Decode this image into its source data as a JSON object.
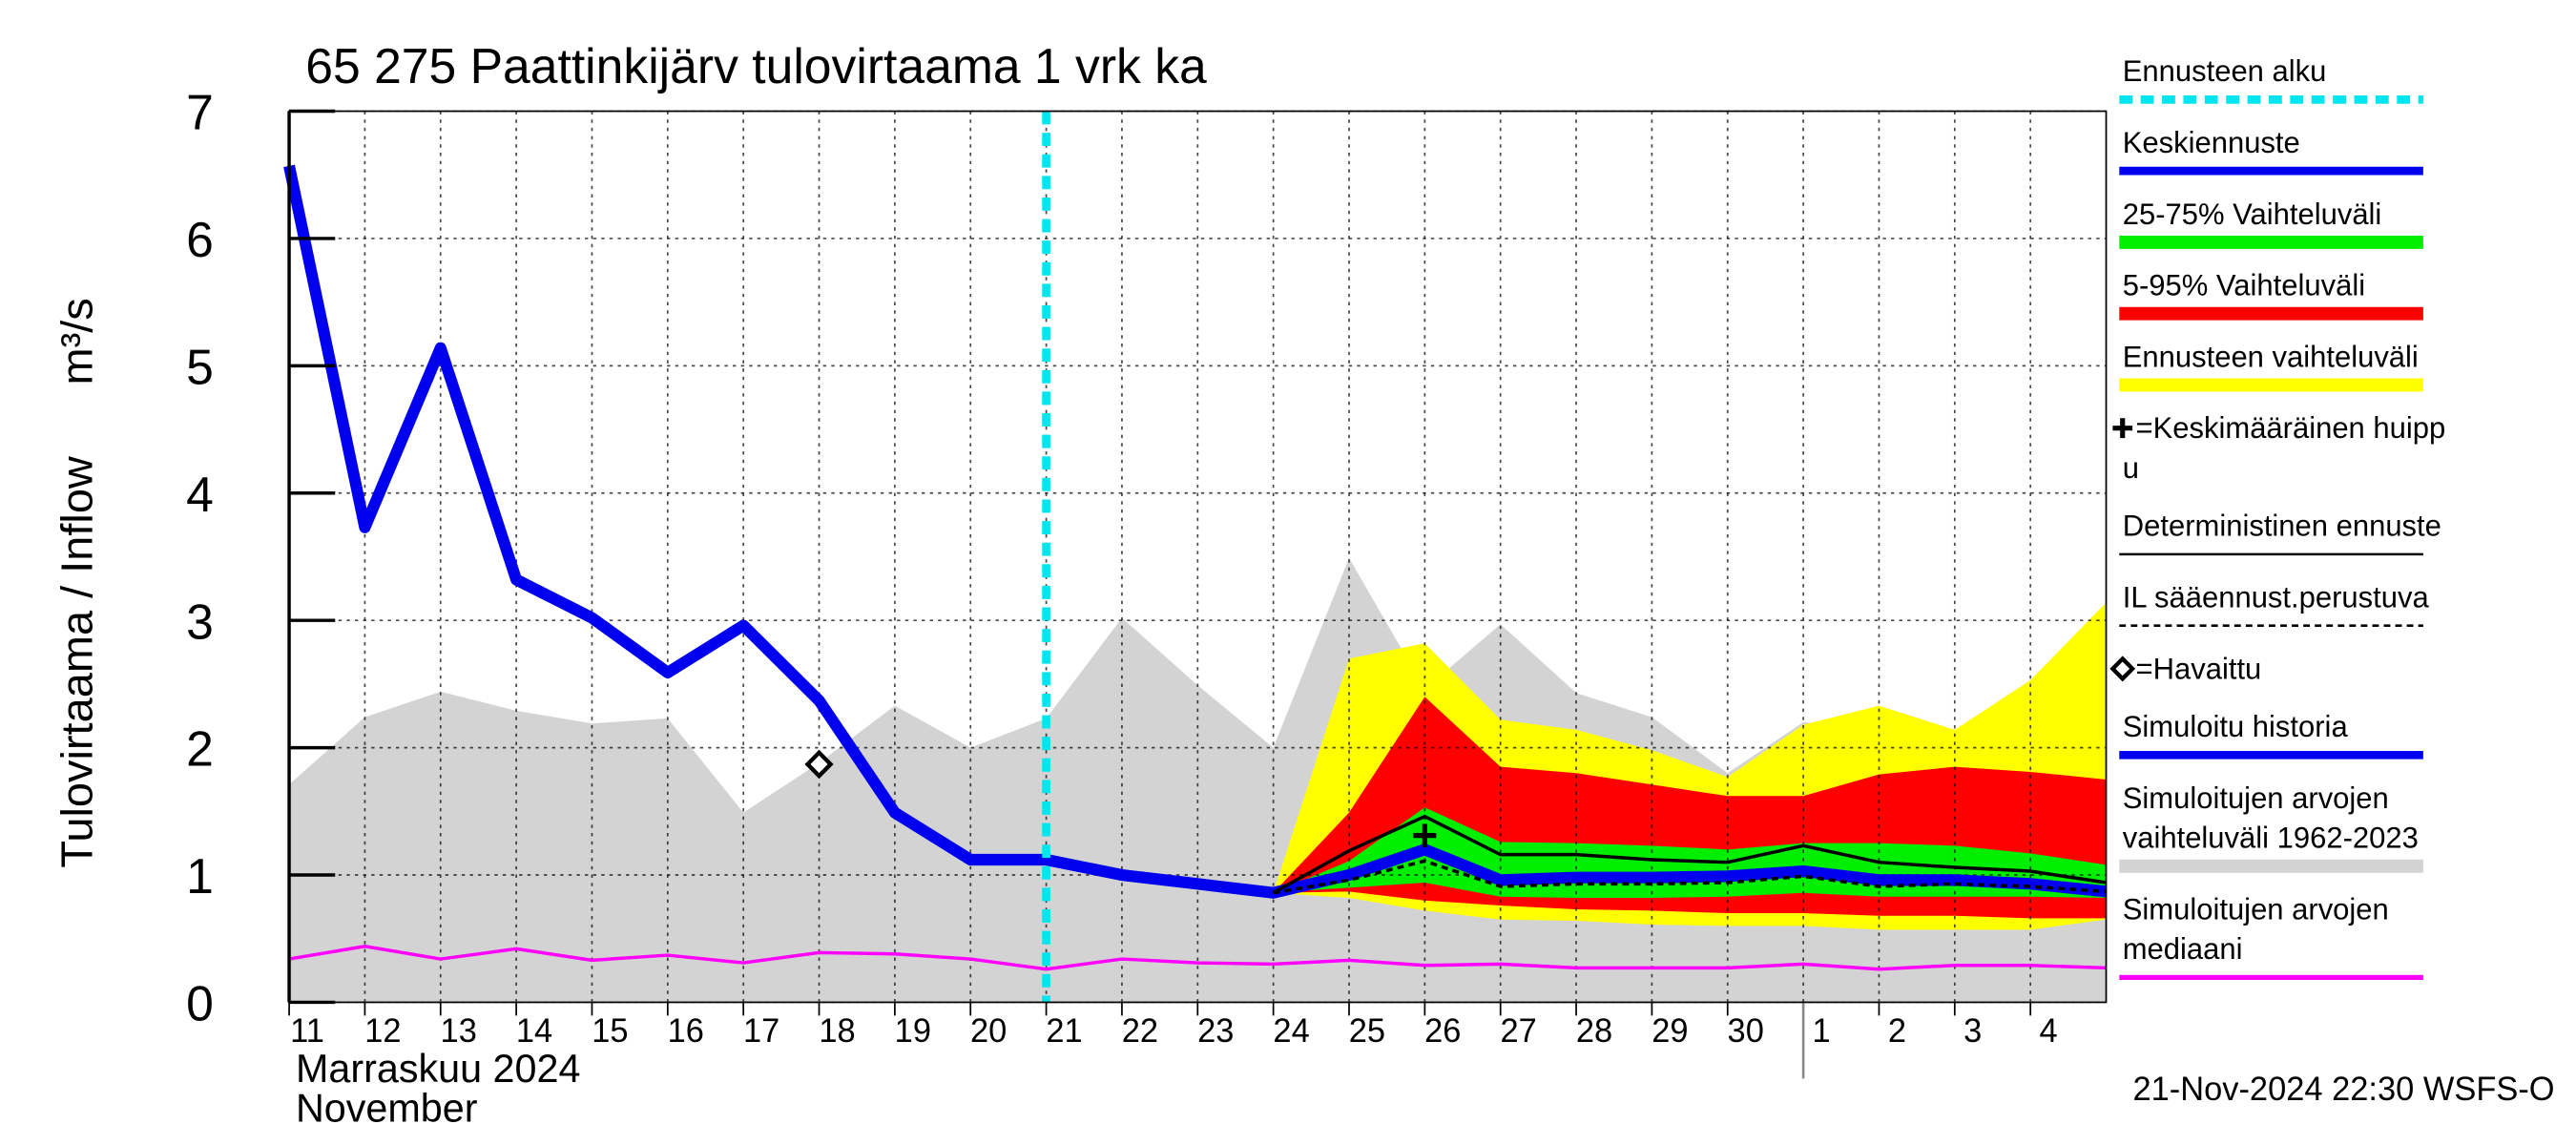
{
  "chart_data": {
    "type": "line",
    "title": "65 275 Paattinkijärv tulovirtaama 1 vrk ka",
    "y_label": "Tulovirtaama / Inflow",
    "y_unit": "m³/s",
    "x_label": [
      "Marraskuu 2024",
      "November"
    ],
    "footer": "21-Nov-2024 22:30 WSFS-O",
    "grid": true,
    "xlim": [
      "2024-11-11",
      "2024-12-05"
    ],
    "ylim": [
      0,
      7
    ],
    "yticks": [
      0,
      1,
      2,
      3,
      4,
      5,
      6,
      7
    ],
    "xticks": [
      {
        "value": "2024-11-11",
        "label": "11"
      },
      {
        "value": "2024-11-12",
        "label": "12"
      },
      {
        "value": "2024-11-13",
        "label": "13"
      },
      {
        "value": "2024-11-14",
        "label": "14"
      },
      {
        "value": "2024-11-15",
        "label": "15"
      },
      {
        "value": "2024-11-16",
        "label": "16"
      },
      {
        "value": "2024-11-17",
        "label": "17"
      },
      {
        "value": "2024-11-18",
        "label": "18"
      },
      {
        "value": "2024-11-19",
        "label": "19"
      },
      {
        "value": "2024-11-20",
        "label": "20"
      },
      {
        "value": "2024-11-21",
        "label": "21"
      },
      {
        "value": "2024-11-22",
        "label": "22"
      },
      {
        "value": "2024-11-23",
        "label": "23"
      },
      {
        "value": "2024-11-24",
        "label": "24"
      },
      {
        "value": "2024-11-25",
        "label": "25"
      },
      {
        "value": "2024-11-26",
        "label": "26"
      },
      {
        "value": "2024-11-27",
        "label": "27"
      },
      {
        "value": "2024-11-28",
        "label": "28"
      },
      {
        "value": "2024-11-29",
        "label": "29"
      },
      {
        "value": "2024-11-30",
        "label": "30"
      },
      {
        "value": "2024-12-01",
        "label": "1"
      },
      {
        "value": "2024-12-02",
        "label": "2"
      },
      {
        "value": "2024-12-03",
        "label": "3"
      },
      {
        "value": "2024-12-04",
        "label": "4"
      }
    ],
    "month_divider": "2024-12-01",
    "series": [
      {
        "name": "Ennusteen alku",
        "style": "vline",
        "color": "#00e5ee",
        "x": "2024-11-21"
      },
      {
        "name": "Keskiennuste",
        "style": "thick",
        "color": "#0000ee",
        "x": [
          "2024-11-21",
          "2024-11-22",
          "2024-11-23",
          "2024-11-24",
          "2024-11-25",
          "2024-11-26",
          "2024-11-27",
          "2024-11-28",
          "2024-11-29",
          "2024-11-30",
          "2024-12-01",
          "2024-12-02",
          "2024-12-03",
          "2024-12-04",
          "2024-12-05"
        ],
        "values": [
          1.12,
          1.0,
          0.93,
          0.86,
          1.0,
          1.2,
          0.96,
          0.98,
          0.98,
          0.99,
          1.03,
          0.96,
          0.96,
          0.93,
          0.87
        ]
      },
      {
        "name": "25-75% Vaihteluväli",
        "style": "band",
        "color": "#00ee00",
        "x": [
          "2024-11-24",
          "2024-11-25",
          "2024-11-26",
          "2024-11-27",
          "2024-11-28",
          "2024-11-29",
          "2024-11-30",
          "2024-12-01",
          "2024-12-02",
          "2024-12-03",
          "2024-12-04",
          "2024-12-05"
        ],
        "upper": [
          0.86,
          1.11,
          1.53,
          1.26,
          1.25,
          1.23,
          1.2,
          1.25,
          1.25,
          1.23,
          1.17,
          1.08
        ],
        "lower": [
          0.86,
          0.9,
          0.94,
          0.83,
          0.82,
          0.82,
          0.83,
          0.86,
          0.83,
          0.83,
          0.83,
          0.82
        ]
      },
      {
        "name": "5-95% Vaihteluväli",
        "style": "band",
        "color": "#ff0000",
        "x": [
          "2024-11-24",
          "2024-11-25",
          "2024-11-26",
          "2024-11-27",
          "2024-11-28",
          "2024-11-29",
          "2024-11-30",
          "2024-12-01",
          "2024-12-02",
          "2024-12-03",
          "2024-12-04",
          "2024-12-05"
        ],
        "upper": [
          0.86,
          1.49,
          2.4,
          1.85,
          1.8,
          1.71,
          1.62,
          1.62,
          1.79,
          1.85,
          1.81,
          1.75
        ],
        "lower": [
          0.86,
          0.87,
          0.8,
          0.76,
          0.73,
          0.72,
          0.7,
          0.7,
          0.68,
          0.68,
          0.66,
          0.66
        ]
      },
      {
        "name": "Ennusteen vaihteluväli",
        "style": "band",
        "color": "#ffff00",
        "x": [
          "2024-11-24",
          "2024-11-25",
          "2024-11-26",
          "2024-11-27",
          "2024-11-28",
          "2024-11-29",
          "2024-11-30",
          "2024-12-01",
          "2024-12-02",
          "2024-12-03",
          "2024-12-04",
          "2024-12-05"
        ],
        "upper": [
          0.86,
          2.7,
          2.82,
          2.22,
          2.14,
          1.98,
          1.77,
          2.18,
          2.33,
          2.14,
          2.53,
          3.14
        ],
        "lower": [
          0.86,
          0.82,
          0.72,
          0.65,
          0.64,
          0.61,
          0.6,
          0.6,
          0.57,
          0.57,
          0.57,
          0.65
        ]
      },
      {
        "name": [
          "=Keskimääräinen huipp",
          "u"
        ],
        "style": "cross",
        "color": "#000000",
        "x": "2024-11-26",
        "values": 1.31
      },
      {
        "name": "Deterministinen ennuste",
        "style": "line",
        "color": "#000000",
        "x": [
          "2024-11-24",
          "2024-11-25",
          "2024-11-26",
          "2024-11-27",
          "2024-11-28",
          "2024-11-29",
          "2024-11-30",
          "2024-12-01",
          "2024-12-02",
          "2024-12-03",
          "2024-12-04",
          "2024-12-05"
        ],
        "values": [
          0.86,
          1.19,
          1.46,
          1.16,
          1.16,
          1.12,
          1.1,
          1.23,
          1.1,
          1.06,
          1.03,
          0.94
        ]
      },
      {
        "name": "IL sääennust.perustuva",
        "style": "dashed",
        "color": "#000000",
        "x": [
          "2024-11-24",
          "2024-11-25",
          "2024-11-26",
          "2024-11-27",
          "2024-11-28",
          "2024-11-29",
          "2024-11-30",
          "2024-12-01",
          "2024-12-02",
          "2024-12-03",
          "2024-12-04",
          "2024-12-05"
        ],
        "values": [
          0.86,
          0.96,
          1.11,
          0.91,
          0.93,
          0.93,
          0.94,
          0.99,
          0.91,
          0.93,
          0.91,
          0.87
        ]
      },
      {
        "name": "=Havaittu",
        "style": "diamond",
        "color": "#000000",
        "x": "2024-11-18",
        "values": 1.87
      },
      {
        "name": "Simuloitu historia",
        "style": "thick",
        "color": "#0000ee",
        "x": [
          "2024-11-11",
          "2024-11-12",
          "2024-11-13",
          "2024-11-14",
          "2024-11-15",
          "2024-11-16",
          "2024-11-17",
          "2024-11-18",
          "2024-11-19",
          "2024-11-20",
          "2024-11-21"
        ],
        "values": [
          6.57,
          3.73,
          5.14,
          3.32,
          3.02,
          2.59,
          2.96,
          2.37,
          1.49,
          1.12,
          1.12
        ]
      },
      {
        "name": [
          "Simuloitujen arvojen",
          "vaihteluväli 1962-2023"
        ],
        "style": "band",
        "color": "#d3d3d3",
        "x": [
          "2024-11-11",
          "2024-11-12",
          "2024-11-13",
          "2024-11-14",
          "2024-11-15",
          "2024-11-16",
          "2024-11-17",
          "2024-11-18",
          "2024-11-19",
          "2024-11-20",
          "2024-11-21",
          "2024-11-22",
          "2024-11-23",
          "2024-11-24",
          "2024-11-25",
          "2024-11-26",
          "2024-11-27",
          "2024-11-28",
          "2024-11-29",
          "2024-11-30",
          "2024-12-01",
          "2024-12-02",
          "2024-12-03",
          "2024-12-04",
          "2024-12-05"
        ],
        "upper": [
          1.71,
          2.24,
          2.44,
          2.29,
          2.19,
          2.23,
          1.49,
          1.88,
          2.33,
          2.0,
          2.23,
          3.02,
          2.49,
          2.0,
          3.49,
          2.46,
          2.97,
          2.43,
          2.24,
          1.8,
          2.2,
          2.16,
          1.88,
          1.88,
          1.88
        ],
        "lower": [
          0,
          0,
          0,
          0,
          0,
          0,
          0,
          0,
          0,
          0,
          0,
          0,
          0,
          0,
          0,
          0,
          0,
          0,
          0,
          0,
          0,
          0,
          0,
          0,
          0
        ]
      },
      {
        "name": [
          "Simuloitujen arvojen",
          "mediaani"
        ],
        "style": "line",
        "color": "#ff00ff",
        "x": [
          "2024-11-11",
          "2024-11-12",
          "2024-11-13",
          "2024-11-14",
          "2024-11-15",
          "2024-11-16",
          "2024-11-17",
          "2024-11-18",
          "2024-11-19",
          "2024-11-20",
          "2024-11-21",
          "2024-11-22",
          "2024-11-23",
          "2024-11-24",
          "2024-11-25",
          "2024-11-26",
          "2024-11-27",
          "2024-11-28",
          "2024-11-29",
          "2024-11-30",
          "2024-12-01",
          "2024-12-02",
          "2024-12-03",
          "2024-12-04",
          "2024-12-05"
        ],
        "values": [
          0.34,
          0.44,
          0.34,
          0.42,
          0.33,
          0.37,
          0.31,
          0.39,
          0.38,
          0.34,
          0.26,
          0.34,
          0.31,
          0.3,
          0.33,
          0.29,
          0.3,
          0.27,
          0.27,
          0.27,
          0.3,
          0.26,
          0.29,
          0.29,
          0.27
        ]
      }
    ]
  }
}
